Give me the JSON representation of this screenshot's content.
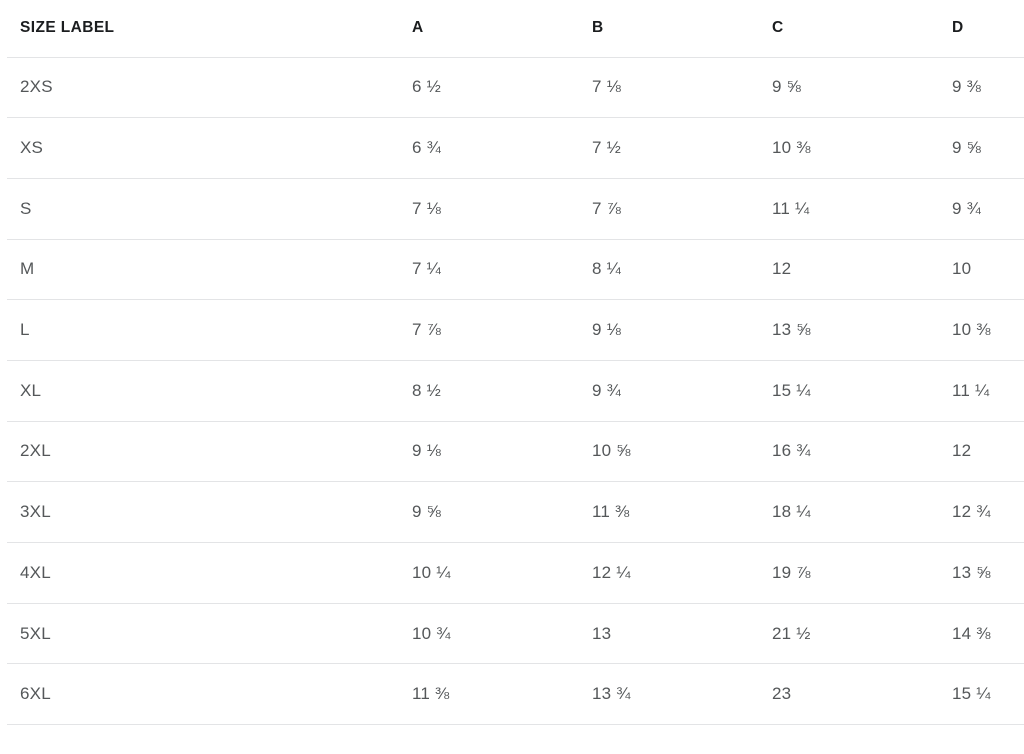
{
  "colors": {
    "background": "#ffffff",
    "divider": "#e3e4e6",
    "header_text": "#1b1d1f",
    "body_text": "#545759"
  },
  "table": {
    "columns": [
      {
        "key": "size_label",
        "label": "SIZE LABEL"
      },
      {
        "key": "a",
        "label": "A"
      },
      {
        "key": "b",
        "label": "B"
      },
      {
        "key": "c",
        "label": "C"
      },
      {
        "key": "d",
        "label": "D"
      }
    ],
    "rows": [
      {
        "label": "2XS",
        "values": [
          "6 ½",
          "7 ⅛",
          "9 ⅝",
          "9 ⅜"
        ]
      },
      {
        "label": "XS",
        "values": [
          "6 ¾",
          "7 ½",
          "10 ⅜",
          "9 ⅝"
        ]
      },
      {
        "label": "S",
        "values": [
          "7 ⅛",
          "7 ⅞",
          "11 ¼",
          "9 ¾"
        ]
      },
      {
        "label": "M",
        "values": [
          "7 ¼",
          "8 ¼",
          "12",
          "10"
        ]
      },
      {
        "label": "L",
        "values": [
          "7 ⅞",
          "9 ⅛",
          "13 ⅝",
          "10 ⅜"
        ]
      },
      {
        "label": "XL",
        "values": [
          "8 ½",
          "9 ¾",
          "15 ¼",
          "11 ¼"
        ]
      },
      {
        "label": "2XL",
        "values": [
          "9 ⅛",
          "10 ⅝",
          "16 ¾",
          "12"
        ]
      },
      {
        "label": "3XL",
        "values": [
          "9 ⅝",
          "11 ⅜",
          "18 ¼",
          "12 ¾"
        ]
      },
      {
        "label": "4XL",
        "values": [
          "10 ¼",
          "12 ¼",
          "19 ⅞",
          "13 ⅝"
        ]
      },
      {
        "label": "5XL",
        "values": [
          "10 ¾",
          "13",
          "21 ½",
          "14 ⅜"
        ]
      },
      {
        "label": "6XL",
        "values": [
          "11 ⅜",
          "13 ¾",
          "23",
          "15 ¼"
        ]
      }
    ]
  }
}
